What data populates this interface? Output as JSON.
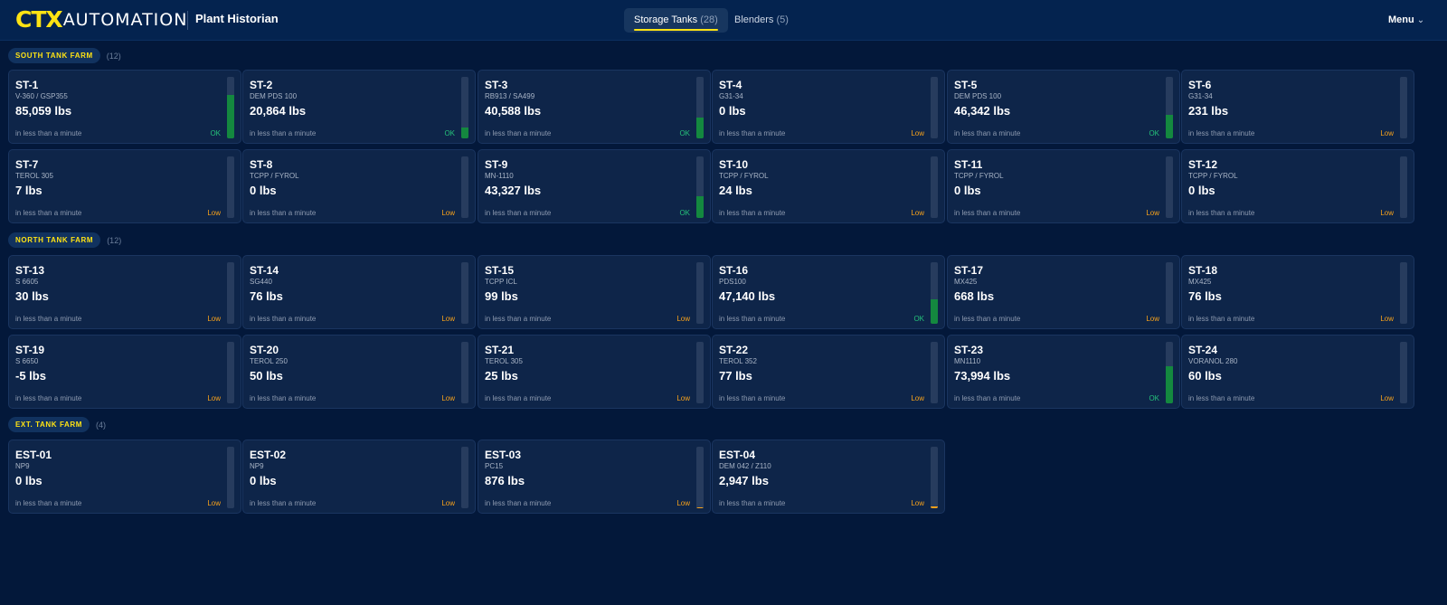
{
  "header": {
    "logo_mark": "CTX",
    "logo_text": "AUTOMATION",
    "app_title": "Plant Historian",
    "tabs": [
      {
        "label": "Storage Tanks",
        "count": "(28)",
        "active": true
      },
      {
        "label": "Blenders",
        "count": "(5)",
        "active": false
      }
    ],
    "menu_label": "Menu",
    "menu_icon": "chevron-down-icon"
  },
  "colors": {
    "accent": "#ffe313",
    "ok": "#25c27a",
    "low": "#f7a21b",
    "gauge_fill": "#14883f",
    "background": "#03183a",
    "card": "#0e2549"
  },
  "sections": [
    {
      "label": "SOUTH TANK FARM",
      "count": "(12)",
      "tanks": [
        {
          "id": "ST-1",
          "product": "V-360 / GSP355",
          "value": "85,059 lbs",
          "updated": "in less than a minute",
          "status": "OK",
          "level": 0.7
        },
        {
          "id": "ST-2",
          "product": "DEM PDS 100",
          "value": "20,864 lbs",
          "updated": "in less than a minute",
          "status": "OK",
          "level": 0.17
        },
        {
          "id": "ST-3",
          "product": "RB913 / SA499",
          "value": "40,588 lbs",
          "updated": "in less than a minute",
          "status": "OK",
          "level": 0.34
        },
        {
          "id": "ST-4",
          "product": "G31-34",
          "value": "0 lbs",
          "updated": "in less than a minute",
          "status": "Low",
          "level": 0
        },
        {
          "id": "ST-5",
          "product": "DEM PDS 100",
          "value": "46,342 lbs",
          "updated": "in less than a minute",
          "status": "OK",
          "level": 0.38
        },
        {
          "id": "ST-6",
          "product": "G31-34",
          "value": "231 lbs",
          "updated": "in less than a minute",
          "status": "Low",
          "level": 0
        },
        {
          "id": "ST-7",
          "product": "TEROL 305",
          "value": "7 lbs",
          "updated": "in less than a minute",
          "status": "Low",
          "level": 0
        },
        {
          "id": "ST-8",
          "product": "TCPP / FYROL",
          "value": "0 lbs",
          "updated": "in less than a minute",
          "status": "Low",
          "level": 0
        },
        {
          "id": "ST-9",
          "product": "MN-1110",
          "value": "43,327 lbs",
          "updated": "in less than a minute",
          "status": "OK",
          "level": 0.36
        },
        {
          "id": "ST-10",
          "product": "TCPP / FYROL",
          "value": "24 lbs",
          "updated": "in less than a minute",
          "status": "Low",
          "level": 0
        },
        {
          "id": "ST-11",
          "product": "TCPP / FYROL",
          "value": "0 lbs",
          "updated": "in less than a minute",
          "status": "Low",
          "level": 0
        },
        {
          "id": "ST-12",
          "product": "TCPP / FYROL",
          "value": "0 lbs",
          "updated": "in less than a minute",
          "status": "Low",
          "level": 0
        }
      ]
    },
    {
      "label": "NORTH TANK FARM",
      "count": "(12)",
      "tanks": [
        {
          "id": "ST-13",
          "product": "S 6605",
          "value": "30 lbs",
          "updated": "in less than a minute",
          "status": "Low",
          "level": 0
        },
        {
          "id": "ST-14",
          "product": "SG440",
          "value": "76 lbs",
          "updated": "in less than a minute",
          "status": "Low",
          "level": 0
        },
        {
          "id": "ST-15",
          "product": "TCPP ICL",
          "value": "99 lbs",
          "updated": "in less than a minute",
          "status": "Low",
          "level": 0
        },
        {
          "id": "ST-16",
          "product": "PDS100",
          "value": "47,140 lbs",
          "updated": "in less than a minute",
          "status": "OK",
          "level": 0.4
        },
        {
          "id": "ST-17",
          "product": "MX425",
          "value": "668 lbs",
          "updated": "in less than a minute",
          "status": "Low",
          "level": 0
        },
        {
          "id": "ST-18",
          "product": "MX425",
          "value": "76 lbs",
          "updated": "in less than a minute",
          "status": "Low",
          "level": 0
        },
        {
          "id": "ST-19",
          "product": "S 6650",
          "value": "-5 lbs",
          "updated": "in less than a minute",
          "status": "Low",
          "level": 0
        },
        {
          "id": "ST-20",
          "product": "TEROL 250",
          "value": "50 lbs",
          "updated": "in less than a minute",
          "status": "Low",
          "level": 0
        },
        {
          "id": "ST-21",
          "product": "TEROL 305",
          "value": "25 lbs",
          "updated": "in less than a minute",
          "status": "Low",
          "level": 0
        },
        {
          "id": "ST-22",
          "product": "TEROL 352",
          "value": "77 lbs",
          "updated": "in less than a minute",
          "status": "Low",
          "level": 0
        },
        {
          "id": "ST-23",
          "product": "MN1110",
          "value": "73,994 lbs",
          "updated": "in less than a minute",
          "status": "OK",
          "level": 0.61
        },
        {
          "id": "ST-24",
          "product": "VORANOL 280",
          "value": "60 lbs",
          "updated": "in less than a minute",
          "status": "Low",
          "level": 0
        }
      ]
    },
    {
      "label": "EXT. TANK FARM",
      "count": "(4)",
      "tanks": [
        {
          "id": "EST-01",
          "product": "NP9",
          "value": "0 lbs",
          "updated": "in less than a minute",
          "status": "Low",
          "level": 0
        },
        {
          "id": "EST-02",
          "product": "NP9",
          "value": "0 lbs",
          "updated": "in less than a minute",
          "status": "Low",
          "level": 0
        },
        {
          "id": "EST-03",
          "product": "PC15",
          "value": "876 lbs",
          "updated": "in less than a minute",
          "status": "Low",
          "level": 0.01
        },
        {
          "id": "EST-04",
          "product": "DEM 042 / Z110",
          "value": "2,947 lbs",
          "updated": "in less than a minute",
          "status": "Low",
          "level": 0.03
        }
      ]
    }
  ]
}
